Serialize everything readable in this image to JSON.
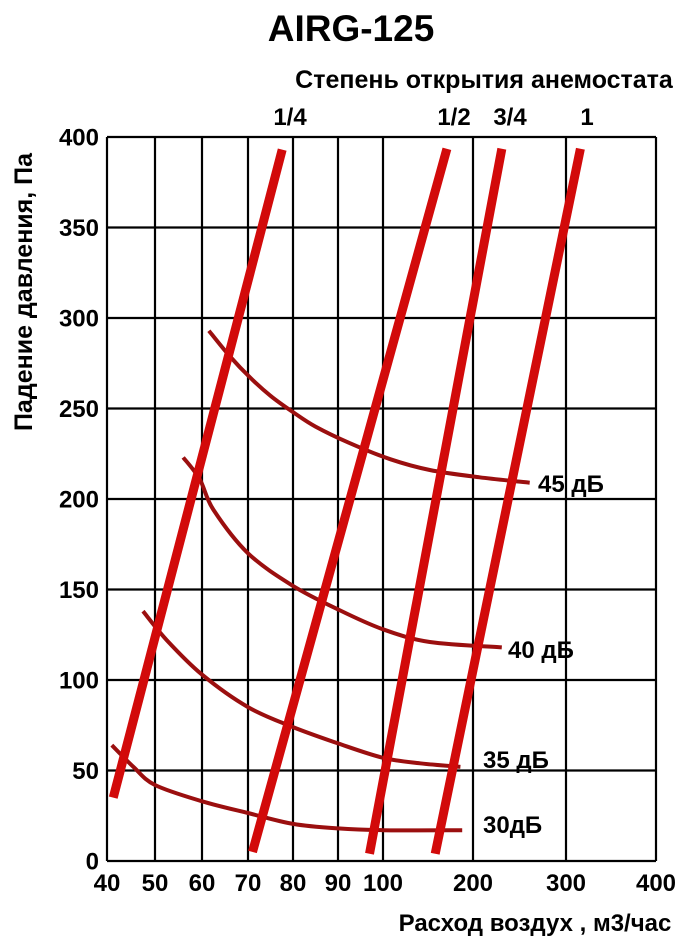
{
  "chart_data": {
    "type": "line",
    "title": "AIRG-125",
    "top_axis_title": "Степень открытия анемостата",
    "xlabel": "Расход воздух , м3/час",
    "ylabel": "Падение давления, Па",
    "x_axis": {
      "scale": "log-paper-style piecewise",
      "unit": "м3/час",
      "ticks": [
        40,
        50,
        60,
        70,
        80,
        90,
        100,
        200,
        300,
        400
      ]
    },
    "y_axis": {
      "min": 0,
      "max": 400,
      "step": 50,
      "unit": "Па",
      "ticks": [
        400,
        350,
        300,
        250,
        200,
        150,
        100,
        50,
        0
      ]
    },
    "top_axis": {
      "ticks": [
        "1/4",
        "1/2",
        "3/4",
        "1"
      ]
    },
    "opening_lines": [
      {
        "label": "1/4",
        "points": [
          [
            41.3,
            35
          ],
          [
            77.6,
            393
          ]
        ]
      },
      {
        "label": "1/2",
        "points": [
          [
            71,
            5
          ],
          [
            171,
            393.5
          ]
        ]
      },
      {
        "label": "3/4",
        "points": [
          [
            97,
            4
          ],
          [
            231,
            393.5
          ]
        ]
      },
      {
        "label": "1",
        "points": [
          [
            158,
            4
          ],
          [
            316,
            393.5
          ]
        ]
      }
    ],
    "noise_curves": [
      {
        "label": "45 дБ",
        "value_db": 45,
        "points": [
          [
            61.5,
            293
          ],
          [
            66,
            279
          ],
          [
            70.5,
            267
          ],
          [
            75,
            257
          ],
          [
            80,
            248
          ],
          [
            85,
            240
          ],
          [
            92.5,
            231
          ],
          [
            108,
            222
          ],
          [
            152,
            216
          ],
          [
            207,
            212
          ],
          [
            261,
            209
          ]
        ]
      },
      {
        "label": "40 дБ",
        "value_db": 40,
        "points": [
          [
            56,
            223
          ],
          [
            59.5,
            211
          ],
          [
            62.5,
            194
          ],
          [
            70,
            170
          ],
          [
            80,
            152
          ],
          [
            90,
            139
          ],
          [
            100,
            128
          ],
          [
            152,
            121
          ],
          [
            231,
            118
          ]
        ]
      },
      {
        "label": "35 дБ",
        "value_db": 35,
        "points": [
          [
            47.5,
            138
          ],
          [
            52.5,
            122
          ],
          [
            60,
            103
          ],
          [
            70,
            85
          ],
          [
            80,
            74
          ],
          [
            90,
            65
          ],
          [
            100,
            57
          ],
          [
            141,
            54
          ],
          [
            186,
            52
          ]
        ]
      },
      {
        "label": "30дБ",
        "value_db": 30,
        "points": [
          [
            41,
            64
          ],
          [
            45.5,
            52
          ],
          [
            50,
            42
          ],
          [
            60,
            33
          ],
          [
            70,
            26.5
          ],
          [
            80,
            20.5
          ],
          [
            90,
            18
          ],
          [
            100,
            17
          ],
          [
            188,
            17
          ]
        ]
      }
    ],
    "colors": {
      "opening_line_red": "#d20a0a",
      "noise_curve_red": "#9b0f0f",
      "grid_black": "#000000",
      "background": "#ffffff"
    }
  }
}
